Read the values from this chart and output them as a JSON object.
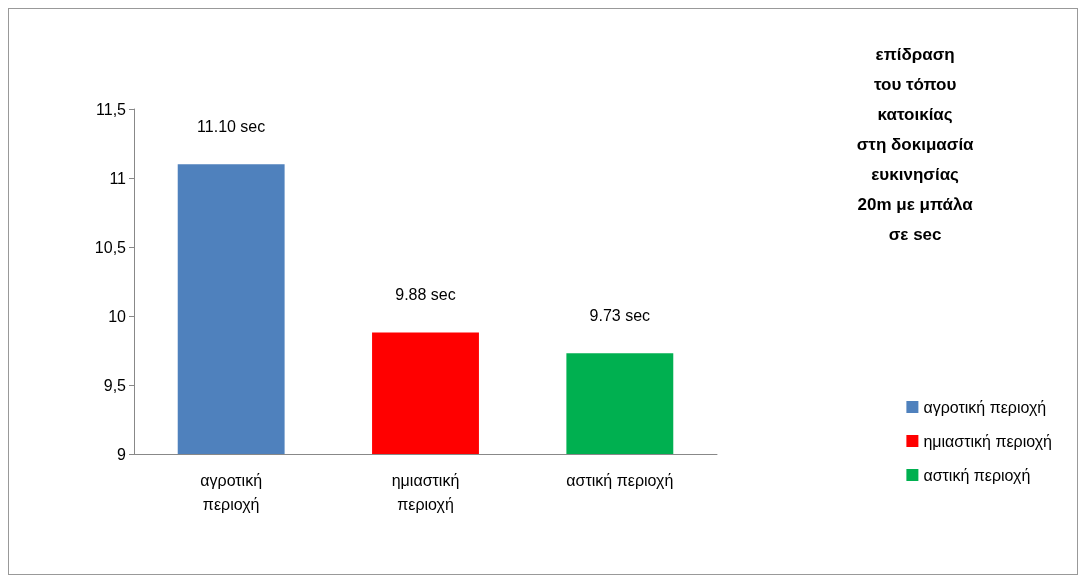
{
  "chart_data": {
    "type": "bar",
    "title": "επίδραση\nτου τόπου\nκατοικίας\nστη δοκιμασία\nευκινησίας\n20m με μπάλα\nσε sec",
    "categories": [
      "αγροτική περιοχή",
      "ημιαστική περιοχή",
      "αστική περιοχή"
    ],
    "series": [
      {
        "name": "αγροτική περιοχή",
        "color": "#4f81bd",
        "values": [
          11.1,
          null,
          null
        ],
        "value_labels": [
          "11.10 sec",
          null,
          null
        ]
      },
      {
        "name": "ημιαστική περιοχή",
        "color": "#ff0000",
        "values": [
          null,
          9.88,
          null
        ],
        "value_labels": [
          null,
          "9.88 sec",
          null
        ]
      },
      {
        "name": "αστική περιοχή",
        "color": "#00b050",
        "values": [
          null,
          null,
          9.73
        ],
        "value_labels": [
          null,
          null,
          "9.73 sec"
        ]
      }
    ],
    "ylim": [
      9,
      11.5
    ],
    "yticks": [
      9,
      {
        "value": 9.5,
        "label": "9,5"
      },
      10,
      {
        "value": 10.5,
        "label": "10,5"
      },
      11,
      {
        "value": 11.5,
        "label": "11,5"
      }
    ],
    "grid": false,
    "legend": "right"
  }
}
